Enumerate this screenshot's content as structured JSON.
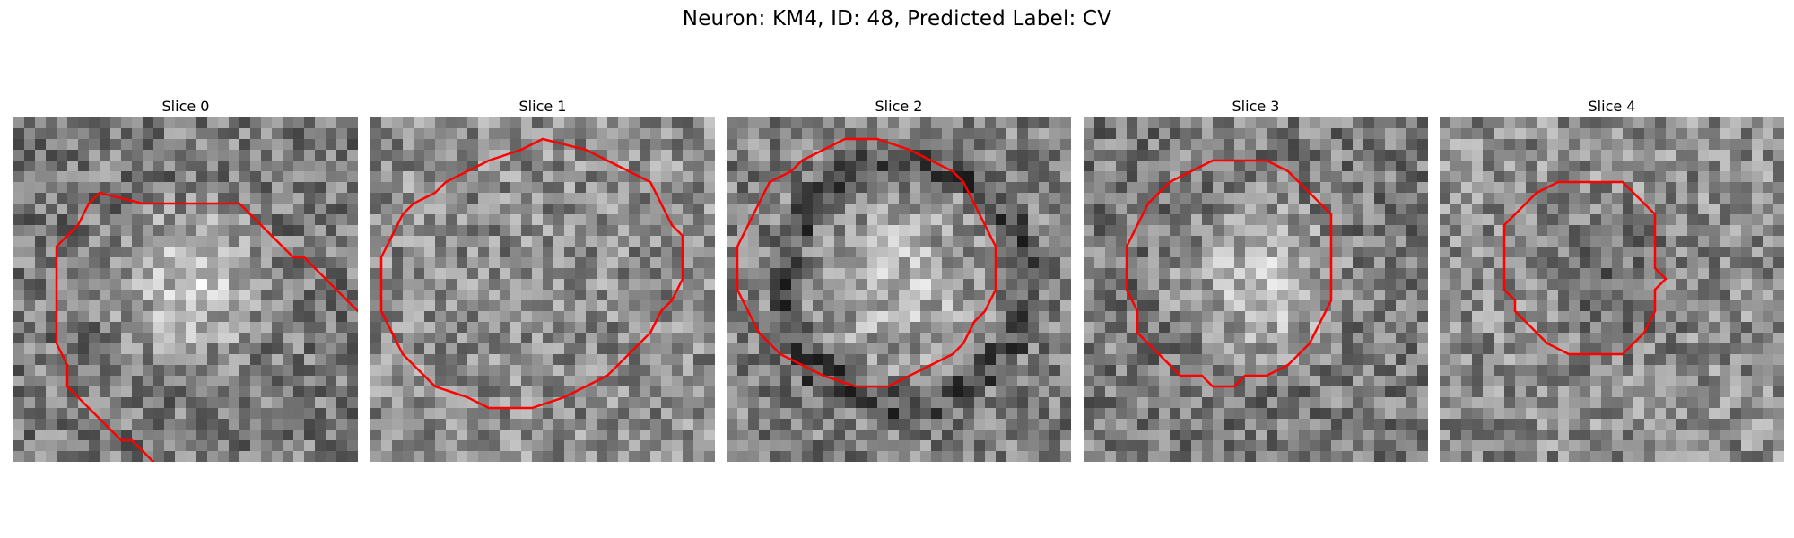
{
  "figure": {
    "title": "Neuron: KM4, ID: 48, Predicted Label: CV"
  },
  "slices": [
    {
      "label": "Slice 0",
      "contour": [
        [
          12,
          8
        ],
        [
          21,
          8
        ],
        [
          25,
          12
        ],
        [
          26,
          13
        ],
        [
          27,
          13
        ],
        [
          30,
          16
        ],
        [
          32,
          18
        ],
        [
          34,
          20
        ],
        [
          36,
          21
        ],
        [
          38,
          23
        ],
        [
          39,
          25
        ],
        [
          40,
          26
        ],
        [
          39,
          27
        ],
        [
          38,
          28
        ],
        [
          36,
          30
        ],
        [
          34,
          32
        ],
        [
          32,
          33
        ],
        [
          31,
          34
        ],
        [
          28,
          35
        ],
        [
          19,
          35
        ],
        [
          17,
          33
        ],
        [
          14,
          33
        ],
        [
          13,
          32
        ],
        [
          11,
          30
        ],
        [
          10,
          30
        ],
        [
          6,
          26
        ],
        [
          5,
          25
        ],
        [
          5,
          23
        ],
        [
          4,
          21
        ],
        [
          4,
          17
        ],
        [
          4,
          12
        ],
        [
          6,
          10
        ],
        [
          7,
          8
        ],
        [
          8,
          7
        ]
      ],
      "brightness": "center-bright"
    },
    {
      "label": "Slice 1",
      "contour": [
        [
          9,
          5
        ],
        [
          11,
          4
        ],
        [
          14,
          3
        ],
        [
          16,
          2
        ],
        [
          20,
          3
        ],
        [
          22,
          4
        ],
        [
          24,
          5
        ],
        [
          26,
          6
        ],
        [
          27,
          8
        ],
        [
          28,
          10
        ],
        [
          29,
          11
        ],
        [
          29,
          13
        ],
        [
          29,
          15
        ],
        [
          28,
          17
        ],
        [
          27,
          18
        ],
        [
          26,
          20
        ],
        [
          24,
          22
        ],
        [
          22,
          24
        ],
        [
          20,
          25
        ],
        [
          18,
          26
        ],
        [
          15,
          27
        ],
        [
          11,
          27
        ],
        [
          9,
          26
        ],
        [
          6,
          25
        ],
        [
          4,
          23
        ],
        [
          3,
          22
        ],
        [
          2,
          20
        ],
        [
          1,
          18
        ],
        [
          1,
          16
        ],
        [
          1,
          13
        ],
        [
          2,
          11
        ],
        [
          3,
          9
        ],
        [
          4,
          8
        ],
        [
          6,
          7
        ],
        [
          7,
          6
        ]
      ],
      "brightness": "uniform"
    },
    {
      "label": "Slice 2",
      "contour": [
        [
          9,
          3
        ],
        [
          11,
          2
        ],
        [
          13,
          2
        ],
        [
          14,
          2
        ],
        [
          17,
          3
        ],
        [
          19,
          4
        ],
        [
          21,
          5
        ],
        [
          22,
          6
        ],
        [
          23,
          8
        ],
        [
          24,
          10
        ],
        [
          25,
          12
        ],
        [
          25,
          14
        ],
        [
          25,
          16
        ],
        [
          24,
          18
        ],
        [
          23,
          19
        ],
        [
          22,
          21
        ],
        [
          21,
          22
        ],
        [
          19,
          23
        ],
        [
          17,
          24
        ],
        [
          15,
          25
        ],
        [
          12,
          25
        ],
        [
          9,
          24
        ],
        [
          7,
          23
        ],
        [
          5,
          22
        ],
        [
          4,
          21
        ],
        [
          3,
          20
        ],
        [
          2,
          18
        ],
        [
          1,
          16
        ],
        [
          1,
          14
        ],
        [
          1,
          12
        ],
        [
          2,
          10
        ],
        [
          3,
          8
        ],
        [
          4,
          6
        ],
        [
          6,
          5
        ],
        [
          7,
          4
        ]
      ],
      "brightness": "center-bright-dark-ring"
    },
    {
      "label": "Slice 3",
      "contour": [
        [
          14,
          4
        ],
        [
          16,
          4
        ],
        [
          17,
          4
        ],
        [
          19,
          5
        ],
        [
          20,
          6
        ],
        [
          21,
          7
        ],
        [
          22,
          8
        ],
        [
          23,
          9
        ],
        [
          23,
          11
        ],
        [
          23,
          14
        ],
        [
          23,
          17
        ],
        [
          22,
          19
        ],
        [
          21,
          21
        ],
        [
          20,
          22
        ],
        [
          19,
          23
        ],
        [
          17,
          24
        ],
        [
          15,
          24
        ],
        [
          14,
          25
        ],
        [
          12,
          25
        ],
        [
          11,
          24
        ],
        [
          9,
          24
        ],
        [
          8,
          23
        ],
        [
          7,
          22
        ],
        [
          6,
          21
        ],
        [
          5,
          20
        ],
        [
          5,
          18
        ],
        [
          4,
          16
        ],
        [
          4,
          14
        ],
        [
          4,
          12
        ],
        [
          5,
          10
        ],
        [
          6,
          8
        ],
        [
          7,
          7
        ],
        [
          8,
          6
        ],
        [
          10,
          5
        ],
        [
          12,
          4
        ]
      ],
      "brightness": "center-bright"
    },
    {
      "label": "Slice 4",
      "contour": [
        [
          12,
          6
        ],
        [
          13,
          6
        ],
        [
          15,
          6
        ],
        [
          17,
          6
        ],
        [
          18,
          7
        ],
        [
          19,
          8
        ],
        [
          20,
          9
        ],
        [
          20,
          11
        ],
        [
          20,
          13
        ],
        [
          20,
          14
        ],
        [
          21,
          15
        ],
        [
          20,
          16
        ],
        [
          20,
          18
        ],
        [
          19,
          20
        ],
        [
          18,
          21
        ],
        [
          17,
          22
        ],
        [
          15,
          22
        ],
        [
          13,
          22
        ],
        [
          12,
          22
        ],
        [
          10,
          21
        ],
        [
          9,
          20
        ],
        [
          8,
          19
        ],
        [
          7,
          18
        ],
        [
          7,
          17
        ],
        [
          6,
          16
        ],
        [
          6,
          14
        ],
        [
          6,
          12
        ],
        [
          6,
          10
        ],
        [
          7,
          9
        ],
        [
          8,
          8
        ],
        [
          9,
          7
        ],
        [
          11,
          6
        ]
      ],
      "brightness": "center-dark"
    }
  ],
  "colors": {
    "contour": "#ff0000",
    "background": "#ffffff",
    "text": "#000000"
  }
}
